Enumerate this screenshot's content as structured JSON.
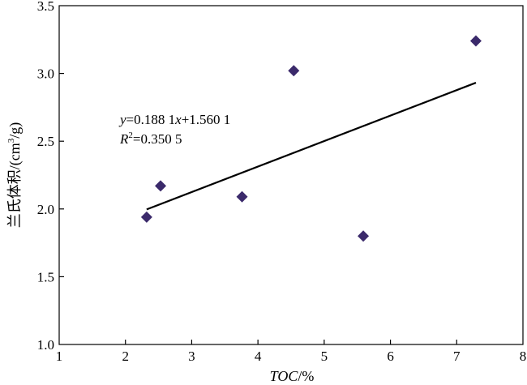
{
  "chart_data": {
    "type": "scatter",
    "xlabel_italic": "TOC",
    "xlabel_rest": "/%",
    "ylabel_prefix": "兰氏体积/(cm",
    "ylabel_sup": "3",
    "ylabel_suffix": "/g)",
    "xlim": [
      1,
      8
    ],
    "ylim": [
      1.0,
      3.5
    ],
    "xticks": [
      "1",
      "2",
      "3",
      "4",
      "5",
      "6",
      "7",
      "8"
    ],
    "yticks": [
      "1.0",
      "1.5",
      "2.0",
      "2.5",
      "3.0",
      "3.5"
    ],
    "x": [
      2.32,
      2.53,
      3.76,
      4.54,
      5.59,
      7.29
    ],
    "y": [
      1.94,
      2.17,
      2.09,
      3.02,
      1.8,
      3.24
    ],
    "marker": "diamond",
    "marker_color": "#3b2a6b",
    "trendline": {
      "slope": 0.1881,
      "intercept": 1.5601,
      "x_range": [
        2.32,
        7.29
      ],
      "color": "#000000"
    },
    "equation": {
      "line1_y": "y",
      "line1_rest_a": "=0.188 1",
      "line1_x": "x",
      "line1_rest_b": "+1.560 1",
      "line2_R": "R",
      "line2_sup": "2",
      "line2_rest": "=0.350 5"
    },
    "grid": false
  }
}
